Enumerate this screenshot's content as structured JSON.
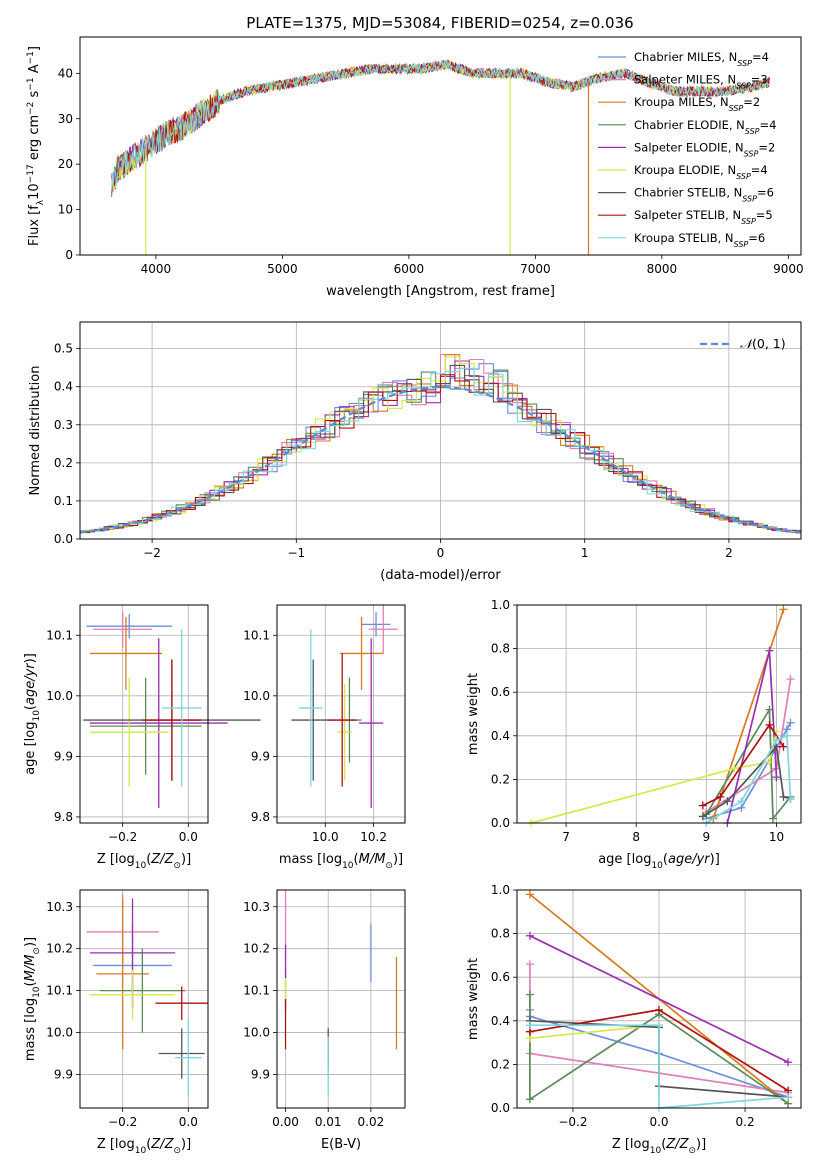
{
  "figure_title": "PLATE=1375, MJD=53084, FIBERID=0254, z=0.036",
  "colors": {
    "Chabrier MILES": "#6a8fd8",
    "Salpeter MILES": "#e07fb8",
    "Kroupa MILES": "#d77a1e",
    "Chabrier ELODIE": "#5a8a5a",
    "Salpeter ELODIE": "#9b2fb0",
    "Kroupa ELODIE": "#d6e84a",
    "Chabrier STELIB": "#555555",
    "Salpeter STELIB": "#b01010",
    "Kroupa STELIB": "#7fd6dd"
  },
  "chart_data": [
    {
      "id": "spectrum",
      "type": "line",
      "title": "PLATE=1375, MJD=53084, FIBERID=0254, z=0.036",
      "xlabel": "wavelength [Angstrom, rest frame]",
      "ylabel": "Flux [f_λ 10^-17 erg cm^-2 s^-1 A^-1]",
      "xlim": [
        3400,
        9100
      ],
      "ylim": [
        0,
        48
      ],
      "xticks": [
        4000,
        5000,
        6000,
        7000,
        8000,
        9000
      ],
      "yticks": [
        0,
        10,
        20,
        30,
        40
      ],
      "legend_position": "upper-right",
      "x": [
        3650,
        3700,
        3800,
        3900,
        4000,
        4100,
        4200,
        4300,
        4400,
        4500,
        4700,
        4900,
        5100,
        5300,
        5500,
        5700,
        5900,
        6100,
        6300,
        6500,
        6700,
        6900,
        7100,
        7300,
        7500,
        7700,
        7900,
        8100,
        8300,
        8500,
        8700,
        8850
      ],
      "y": [
        15,
        19,
        21,
        23,
        25,
        27,
        28,
        30,
        32,
        34,
        36,
        37,
        38,
        39,
        40,
        41,
        41,
        41,
        42,
        40,
        40,
        40,
        38,
        37,
        39,
        40,
        38,
        36,
        36,
        36,
        37,
        38
      ],
      "series": [
        {
          "name": "Chabrier MILES, N_SSP=4",
          "label_main": "Chabrier MILES, N",
          "label_sub": "SSP",
          "label_tail": "=4",
          "color": "#6a8fd8"
        },
        {
          "name": "Salpeter MILES, N_SSP=3",
          "label_main": "Salpeter MILES, N",
          "label_sub": "SSP",
          "label_tail": "=3",
          "color": "#e07fb8"
        },
        {
          "name": "Kroupa MILES, N_SSP=2",
          "label_main": "Kroupa MILES, N",
          "label_sub": "SSP",
          "label_tail": "=2",
          "color": "#d77a1e"
        },
        {
          "name": "Chabrier ELODIE, N_SSP=4",
          "label_main": "Chabrier ELODIE, N",
          "label_sub": "SSP",
          "label_tail": "=4",
          "color": "#5a8a5a"
        },
        {
          "name": "Salpeter ELODIE, N_SSP=2",
          "label_main": "Salpeter ELODIE, N",
          "label_sub": "SSP",
          "label_tail": "=2",
          "color": "#9b2fb0"
        },
        {
          "name": "Kroupa ELODIE, N_SSP=4",
          "label_main": "Kroupa ELODIE, N",
          "label_sub": "SSP",
          "label_tail": "=4",
          "color": "#d6e84a"
        },
        {
          "name": "Chabrier STELIB, N_SSP=6",
          "label_main": "Chabrier STELIB, N",
          "label_sub": "SSP",
          "label_tail": "=6",
          "color": "#555555"
        },
        {
          "name": "Salpeter STELIB, N_SSP=5",
          "label_main": "Salpeter STELIB, N",
          "label_sub": "SSP",
          "label_tail": "=5",
          "color": "#b01010"
        },
        {
          "name": "Kroupa STELIB, N_SSP=6",
          "label_main": "Kroupa STELIB, N",
          "label_sub": "SSP",
          "label_tail": "=6",
          "color": "#7fd6dd"
        }
      ],
      "drops": [
        {
          "x": 3920,
          "color": "#d6e84a"
        },
        {
          "x": 6800,
          "color": "#d6e84a"
        },
        {
          "x": 7420,
          "color": "#d77a1e"
        }
      ]
    },
    {
      "id": "residuals",
      "type": "line",
      "xlabel": "(data-model)/error",
      "ylabel": "Normed distribution",
      "xlim": [
        -2.5,
        2.5
      ],
      "ylim": [
        0,
        0.57
      ],
      "xticks": [
        -2,
        -1,
        0,
        1,
        2
      ],
      "yticks": [
        0.0,
        0.1,
        0.2,
        0.3,
        0.4,
        0.5
      ],
      "grid": true,
      "legend": "N(0,1)",
      "legend_position": "upper-right",
      "normal": {
        "mean": 0,
        "sigma": 1
      }
    },
    {
      "id": "age_vs_Z",
      "type": "scatter",
      "xlabel": "Z [log10(Z/Z_sun)]",
      "ylabel": "age [log10(age/yr)]",
      "xlim": [
        -0.33,
        0.06
      ],
      "ylim": [
        9.79,
        10.15
      ],
      "xticks": [
        -0.2,
        0.0
      ],
      "yticks": [
        9.8,
        9.9,
        10.0,
        10.1
      ],
      "grid": true,
      "points": [
        {
          "series": "Chabrier MILES",
          "x": -0.18,
          "y": 10.115,
          "xerr": 0.13,
          "yerr": 0.02
        },
        {
          "series": "Salpeter MILES",
          "x": -0.2,
          "y": 10.11,
          "xerr": 0.09,
          "yerr": 0.03
        },
        {
          "series": "Kroupa MILES",
          "x": -0.19,
          "y": 10.07,
          "xerr": 0.11,
          "yerr": 0.06
        },
        {
          "series": "Chabrier ELODIE",
          "x": -0.13,
          "y": 9.95,
          "xerr": 0.17,
          "yerr": 0.08
        },
        {
          "series": "Salpeter ELODIE",
          "x": -0.09,
          "y": 9.955,
          "xerr": 0.21,
          "yerr": 0.14
        },
        {
          "series": "Kroupa ELODIE",
          "x": -0.18,
          "y": 9.94,
          "xerr": 0.12,
          "yerr": 0.09
        },
        {
          "series": "Chabrier STELIB",
          "x": -0.05,
          "y": 9.96,
          "xerr": 0.27,
          "yerr": 0.1
        },
        {
          "series": "Salpeter STELIB",
          "x": -0.05,
          "y": 9.96,
          "xerr": 0.09,
          "yerr": 0.1
        },
        {
          "series": "Kroupa STELIB",
          "x": -0.02,
          "y": 9.98,
          "xerr": 0.06,
          "yerr": 0.13
        }
      ]
    },
    {
      "id": "age_vs_mass",
      "type": "scatter",
      "xlabel": "mass [log10(M/M_sun)]",
      "ylabel": "",
      "xlim": [
        9.8,
        10.33
      ],
      "ylim": [
        9.79,
        10.15
      ],
      "xticks": [
        10.0,
        10.2
      ],
      "yticks": [
        9.8,
        9.9,
        10.0,
        10.1
      ],
      "grid": true,
      "points": [
        {
          "series": "Chabrier MILES",
          "x": 10.21,
          "y": 10.118,
          "xerr": 0.06,
          "yerr": 0.02
        },
        {
          "series": "Salpeter MILES",
          "x": 10.24,
          "y": 10.11,
          "xerr": 0.06,
          "yerr": 0.04
        },
        {
          "series": "Kroupa MILES",
          "x": 10.15,
          "y": 10.07,
          "xerr": 0.09,
          "yerr": 0.06
        },
        {
          "series": "Chabrier ELODIE",
          "x": 10.1,
          "y": 9.96,
          "xerr": 0.05,
          "yerr": 0.07
        },
        {
          "series": "Salpeter ELODIE",
          "x": 10.19,
          "y": 9.955,
          "xerr": 0.05,
          "yerr": 0.14
        },
        {
          "series": "Kroupa ELODIE",
          "x": 10.08,
          "y": 9.94,
          "xerr": 0.03,
          "yerr": 0.08
        },
        {
          "series": "Chabrier STELIB",
          "x": 9.95,
          "y": 9.96,
          "xerr": 0.09,
          "yerr": 0.1
        },
        {
          "series": "Salpeter STELIB",
          "x": 10.07,
          "y": 9.96,
          "xerr": 0.06,
          "yerr": 0.11
        },
        {
          "series": "Kroupa STELIB",
          "x": 9.94,
          "y": 9.98,
          "xerr": 0.05,
          "yerr": 0.13
        }
      ]
    },
    {
      "id": "mass_weight_vs_age",
      "type": "line",
      "xlabel": "age [log10(age/yr)]",
      "ylabel": "mass weight",
      "xlim": [
        6.3,
        10.35
      ],
      "ylim": [
        0,
        1.0
      ],
      "xticks": [
        7,
        8,
        9,
        10
      ],
      "yticks": [
        0.0,
        0.2,
        0.4,
        0.6,
        0.8,
        1.0
      ],
      "grid": true,
      "series": [
        {
          "name": "Chabrier MILES",
          "x": [
            9.0,
            9.5,
            10.15,
            10.2
          ],
          "y": [
            0.02,
            0.07,
            0.43,
            0.46
          ]
        },
        {
          "name": "Salpeter MILES",
          "x": [
            9.0,
            10.0,
            10.2
          ],
          "y": [
            0.05,
            0.25,
            0.66
          ]
        },
        {
          "name": "Kroupa MILES",
          "x": [
            9.1,
            10.1
          ],
          "y": [
            0.02,
            0.98
          ]
        },
        {
          "name": "Chabrier ELODIE",
          "x": [
            9.0,
            9.9,
            9.95,
            10.2
          ],
          "y": [
            0.04,
            0.52,
            0.02,
            0.12
          ]
        },
        {
          "name": "Salpeter ELODIE",
          "x": [
            9.3,
            9.9,
            10.0
          ],
          "y": [
            0.0,
            0.79,
            0.21
          ]
        },
        {
          "name": "Kroupa ELODIE",
          "x": [
            6.5,
            9.4,
            9.9,
            10.0
          ],
          "y": [
            0.0,
            0.25,
            0.28,
            0.42
          ]
        },
        {
          "name": "Chabrier STELIB",
          "x": [
            8.95,
            9.3,
            10.0,
            10.1,
            10.2
          ],
          "y": [
            0.03,
            0.1,
            0.35,
            0.12,
            0.11
          ]
        },
        {
          "name": "Salpeter STELIB",
          "x": [
            8.95,
            9.2,
            9.9,
            10.1
          ],
          "y": [
            0.08,
            0.12,
            0.45,
            0.35
          ]
        },
        {
          "name": "Kroupa STELIB",
          "x": [
            9.0,
            9.5,
            10.0,
            10.15,
            10.2
          ],
          "y": [
            0.0,
            0.1,
            0.38,
            0.4,
            0.11
          ]
        }
      ]
    },
    {
      "id": "mass_vs_Z",
      "type": "scatter",
      "xlabel": "Z [log10(Z/Z_sun)]",
      "ylabel": "mass [log10(M/M_sun)]",
      "xlim": [
        -0.33,
        0.06
      ],
      "ylim": [
        9.82,
        10.34
      ],
      "xticks": [
        -0.2,
        0.0
      ],
      "yticks": [
        9.9,
        10.0,
        10.1,
        10.2,
        10.3
      ],
      "grid": true,
      "points": [
        {
          "series": "Chabrier MILES",
          "x": -0.17,
          "y": 10.16,
          "xerr": 0.12,
          "yerr": 0.1
        },
        {
          "series": "Salpeter MILES",
          "x": -0.2,
          "y": 10.24,
          "xerr": 0.11,
          "yerr": 0.09
        },
        {
          "series": "Kroupa MILES",
          "x": -0.2,
          "y": 10.14,
          "xerr": 0.08,
          "yerr": 0.18
        },
        {
          "series": "Chabrier ELODIE",
          "x": -0.14,
          "y": 10.1,
          "xerr": 0.13,
          "yerr": 0.1
        },
        {
          "series": "Salpeter ELODIE",
          "x": -0.17,
          "y": 10.19,
          "xerr": 0.13,
          "yerr": 0.13
        },
        {
          "series": "Kroupa ELODIE",
          "x": -0.17,
          "y": 10.09,
          "xerr": 0.13,
          "yerr": 0.06
        },
        {
          "series": "Chabrier STELIB",
          "x": -0.02,
          "y": 9.95,
          "xerr": 0.07,
          "yerr": 0.06
        },
        {
          "series": "Salpeter STELIB",
          "x": -0.02,
          "y": 10.07,
          "xerr": 0.08,
          "yerr": 0.04
        },
        {
          "series": "Kroupa STELIB",
          "x": 0.0,
          "y": 9.94,
          "xerr": 0.04,
          "yerr": 0.09
        }
      ]
    },
    {
      "id": "mass_vs_ebv",
      "type": "scatter",
      "xlabel": "E(B-V)",
      "ylabel": "",
      "xlim": [
        -0.002,
        0.028
      ],
      "ylim": [
        9.82,
        10.34
      ],
      "xticks": [
        0.0,
        0.01,
        0.02
      ],
      "xtick_labels": [
        "0.00",
        "0.01",
        "0.02"
      ],
      "yticks": [
        9.9,
        10.0,
        10.1,
        10.2,
        10.3
      ],
      "grid": true,
      "points": [
        {
          "series": "Chabrier MILES",
          "x": 0.02,
          "y": 10.19,
          "xerr": 0.0,
          "yerr": 0.07
        },
        {
          "series": "Salpeter MILES",
          "x": 0.0,
          "y": 10.26,
          "xerr": 0.0,
          "yerr": 0.08
        },
        {
          "series": "Kroupa MILES",
          "x": 0.026,
          "y": 10.07,
          "xerr": 0.0,
          "yerr": 0.11
        },
        {
          "series": "Chabrier ELODIE",
          "x": 0.0,
          "y": 10.1,
          "xerr": 0.0,
          "yerr": 0.05
        },
        {
          "series": "Salpeter ELODIE",
          "x": 0.0,
          "y": 10.17,
          "xerr": 0.0,
          "yerr": 0.04
        },
        {
          "series": "Kroupa ELODIE",
          "x": 0.0,
          "y": 10.1,
          "xerr": 0.0,
          "yerr": 0.03
        },
        {
          "series": "Chabrier STELIB",
          "x": 0.01,
          "y": 9.96,
          "xerr": 0.0,
          "yerr": 0.05
        },
        {
          "series": "Salpeter STELIB",
          "x": 0.0,
          "y": 10.02,
          "xerr": 0.0,
          "yerr": 0.06
        },
        {
          "series": "Kroupa STELIB",
          "x": 0.01,
          "y": 9.92,
          "xerr": 0.0,
          "yerr": 0.07
        }
      ]
    },
    {
      "id": "mass_weight_vs_Z",
      "type": "line",
      "xlabel": "Z [log10(Z/Z_sun)]",
      "ylabel": "mass weight",
      "xlim": [
        -0.33,
        0.33
      ],
      "ylim": [
        0,
        1.0
      ],
      "xticks": [
        -0.2,
        0.0,
        0.2
      ],
      "yticks": [
        0.0,
        0.2,
        0.4,
        0.6,
        0.8,
        1.0
      ],
      "grid": true,
      "series": [
        {
          "name": "Chabrier MILES",
          "x": [
            -0.3,
            -0.3,
            0.0,
            0.3
          ],
          "y": [
            0.45,
            0.42,
            0.25,
            0.05
          ]
        },
        {
          "name": "Salpeter MILES",
          "x": [
            -0.3,
            -0.3,
            0.3
          ],
          "y": [
            0.66,
            0.25,
            0.07
          ]
        },
        {
          "name": "Kroupa MILES",
          "x": [
            -0.3,
            0.3
          ],
          "y": [
            0.98,
            0.02
          ]
        },
        {
          "name": "Chabrier ELODIE",
          "x": [
            -0.3,
            -0.3,
            0.0,
            0.3
          ],
          "y": [
            0.52,
            0.04,
            0.43,
            0.02
          ]
        },
        {
          "name": "Salpeter ELODIE",
          "x": [
            -0.3,
            0.3
          ],
          "y": [
            0.79,
            0.21
          ]
        },
        {
          "name": "Kroupa ELODIE",
          "x": [
            -0.3,
            0.0
          ],
          "y": [
            0.32,
            0.38
          ]
        },
        {
          "name": "Chabrier STELIB",
          "x": [
            -0.3,
            0.0,
            0.0,
            0.3
          ],
          "y": [
            0.4,
            0.37,
            0.1,
            0.05
          ]
        },
        {
          "name": "Salpeter STELIB",
          "x": [
            -0.3,
            0.0,
            0.3
          ],
          "y": [
            0.35,
            0.45,
            0.08
          ]
        },
        {
          "name": "Kroupa STELIB",
          "x": [
            -0.3,
            0.0,
            0.0,
            0.3
          ],
          "y": [
            0.38,
            0.38,
            0.0,
            0.05
          ]
        }
      ]
    }
  ]
}
